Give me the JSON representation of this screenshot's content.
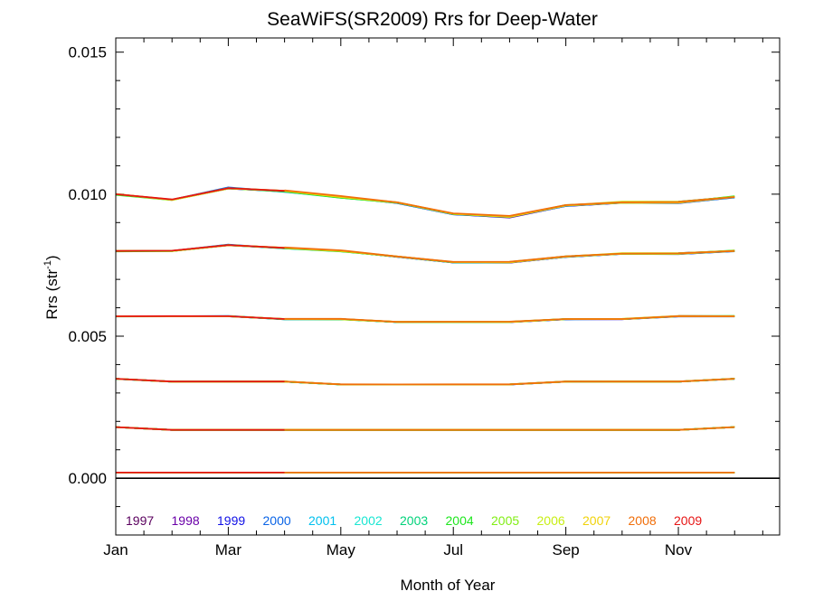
{
  "chart_data": {
    "type": "line",
    "title": "SeaWiFS(SR2009) Rrs for Deep-Water",
    "xlabel": "Month of Year",
    "ylabel_main": "Rrs (str",
    "ylabel_sup": "-1",
    "ylabel_end": ")",
    "xlim": [
      1,
      12.8
    ],
    "ylim": [
      -0.002,
      0.0155
    ],
    "x_ticks": [
      {
        "value": 1,
        "label": "Jan"
      },
      {
        "value": 3,
        "label": "Mar"
      },
      {
        "value": 5,
        "label": "May"
      },
      {
        "value": 7,
        "label": "Jul"
      },
      {
        "value": 9,
        "label": "Sep"
      },
      {
        "value": 11,
        "label": "Nov"
      }
    ],
    "y_ticks": [
      {
        "value": 0.0,
        "label": "0.000"
      },
      {
        "value": 0.005,
        "label": "0.005"
      },
      {
        "value": 0.01,
        "label": "0.010"
      },
      {
        "value": 0.015,
        "label": "0.015"
      }
    ],
    "y_minor_step": 0.001,
    "x_minor_step": 0.5,
    "zero_line": true,
    "legend_position": "bottom-left",
    "months": [
      1,
      2,
      3,
      4,
      5,
      6,
      7,
      8,
      9,
      10,
      11,
      12
    ],
    "bands": [
      {
        "id": "b1",
        "curve": [
          0.01,
          0.0098,
          0.0102,
          0.0101,
          0.0099,
          0.0097,
          0.0093,
          0.0092,
          0.0096,
          0.0097,
          0.0097,
          0.0099
        ]
      },
      {
        "id": "b2",
        "curve": [
          0.008,
          0.008,
          0.0082,
          0.0081,
          0.008,
          0.0078,
          0.0076,
          0.0076,
          0.0078,
          0.0079,
          0.0079,
          0.008
        ]
      },
      {
        "id": "b3",
        "curve": [
          0.0057,
          0.0057,
          0.0057,
          0.0056,
          0.0056,
          0.0055,
          0.0055,
          0.0055,
          0.0056,
          0.0056,
          0.0057,
          0.0057
        ]
      },
      {
        "id": "b4",
        "curve": [
          0.0035,
          0.0034,
          0.0034,
          0.0034,
          0.0033,
          0.0033,
          0.0033,
          0.0033,
          0.0034,
          0.0034,
          0.0034,
          0.0035
        ]
      },
      {
        "id": "b5",
        "curve": [
          0.0018,
          0.0017,
          0.0017,
          0.0017,
          0.0017,
          0.0017,
          0.0017,
          0.0017,
          0.0017,
          0.0017,
          0.0017,
          0.0018
        ]
      },
      {
        "id": "b6",
        "curve": [
          0.0002,
          0.0002,
          0.0002,
          0.0002,
          0.0002,
          0.0002,
          0.0002,
          0.0002,
          0.0002,
          0.0002,
          0.0002,
          0.0002
        ]
      }
    ],
    "series": [
      {
        "name": "1997",
        "color": "#5a005e",
        "start": 11,
        "end": 12,
        "offsets": [
          0,
          0,
          0,
          0,
          0,
          0,
          0,
          0,
          0,
          0,
          0.06,
          0.01
        ]
      },
      {
        "name": "1998",
        "color": "#6a00a8",
        "start": 1,
        "end": 12,
        "offsets": [
          0.005,
          0.002,
          0.0,
          0.005,
          -0.003,
          0.0,
          -0.01,
          -0.035,
          -0.02,
          -0.005,
          0.01,
          0.005
        ]
      },
      {
        "name": "1999",
        "color": "#1010e6",
        "start": 1,
        "end": 12,
        "offsets": [
          -0.01,
          0.0,
          0.0,
          0.0,
          0.005,
          -0.02,
          -0.02,
          -0.015,
          -0.03,
          -0.01,
          -0.025,
          -0.015
        ]
      },
      {
        "name": "2000",
        "color": "#0a64e6",
        "start": 1,
        "end": 12,
        "offsets": [
          -0.005,
          0.005,
          0.06,
          -0.03,
          0.0,
          -0.01,
          -0.015,
          0.005,
          -0.015,
          0.005,
          -0.01,
          -0.03
        ]
      },
      {
        "name": "2001",
        "color": "#00c0ee",
        "start": 1,
        "end": 12,
        "offsets": [
          0.0,
          0.01,
          0.01,
          0.02,
          0.005,
          0.0,
          0.005,
          0.015,
          0.005,
          0.0,
          0.005,
          0.0
        ]
      },
      {
        "name": "2002",
        "color": "#19e6d2",
        "start": 1,
        "end": 12,
        "offsets": [
          -0.01,
          0.005,
          0.015,
          0.01,
          0.015,
          0.005,
          0.01,
          0.01,
          -0.01,
          0.02,
          0.0,
          0.005
        ]
      },
      {
        "name": "2003",
        "color": "#00d27a",
        "start": 1,
        "end": 12,
        "offsets": [
          0.0,
          0.0,
          0.01,
          -0.02,
          -0.04,
          0.005,
          0.01,
          0.02,
          0.0,
          0.025,
          0.01,
          0.02
        ]
      },
      {
        "name": "2004",
        "color": "#1ee61e",
        "start": 1,
        "end": 12,
        "offsets": [
          -0.04,
          -0.01,
          0.015,
          0.005,
          -0.035,
          0.0,
          0.005,
          -0.005,
          0.03,
          0.0,
          0.01,
          0.045
        ]
      },
      {
        "name": "2005",
        "color": "#82ee14",
        "start": 1,
        "end": 12,
        "offsets": [
          0.0,
          0.01,
          0.02,
          0.025,
          -0.005,
          0.02,
          0.015,
          0.04,
          0.02,
          0.0,
          0.01,
          0.025
        ]
      },
      {
        "name": "2006",
        "color": "#c8ee14",
        "start": 1,
        "end": 12,
        "offsets": [
          0.01,
          -0.015,
          -0.005,
          0.035,
          0.01,
          0.01,
          0.015,
          0.02,
          0.01,
          0.055,
          0.06,
          0.0
        ]
      },
      {
        "name": "2007",
        "color": "#f0d20a",
        "start": 1,
        "end": 12,
        "offsets": [
          0.005,
          0.015,
          0.01,
          0.03,
          0.0,
          0.02,
          0.02,
          0.0,
          0.0,
          0.005,
          0.0,
          0.0
        ]
      },
      {
        "name": "2008",
        "color": "#f06e0a",
        "start": 4,
        "end": 12,
        "offsets": [
          0,
          0,
          0,
          0.06,
          0.06,
          0.02,
          0.04,
          0.06,
          0.03,
          0.02,
          0.04,
          0.0
        ]
      },
      {
        "name": "2009",
        "color": "#e61414",
        "start": 1,
        "end": 4,
        "offsets": [
          0.0,
          0.025,
          0.02,
          0.025,
          0,
          0,
          0,
          0,
          0,
          0,
          0,
          0
        ]
      }
    ]
  }
}
